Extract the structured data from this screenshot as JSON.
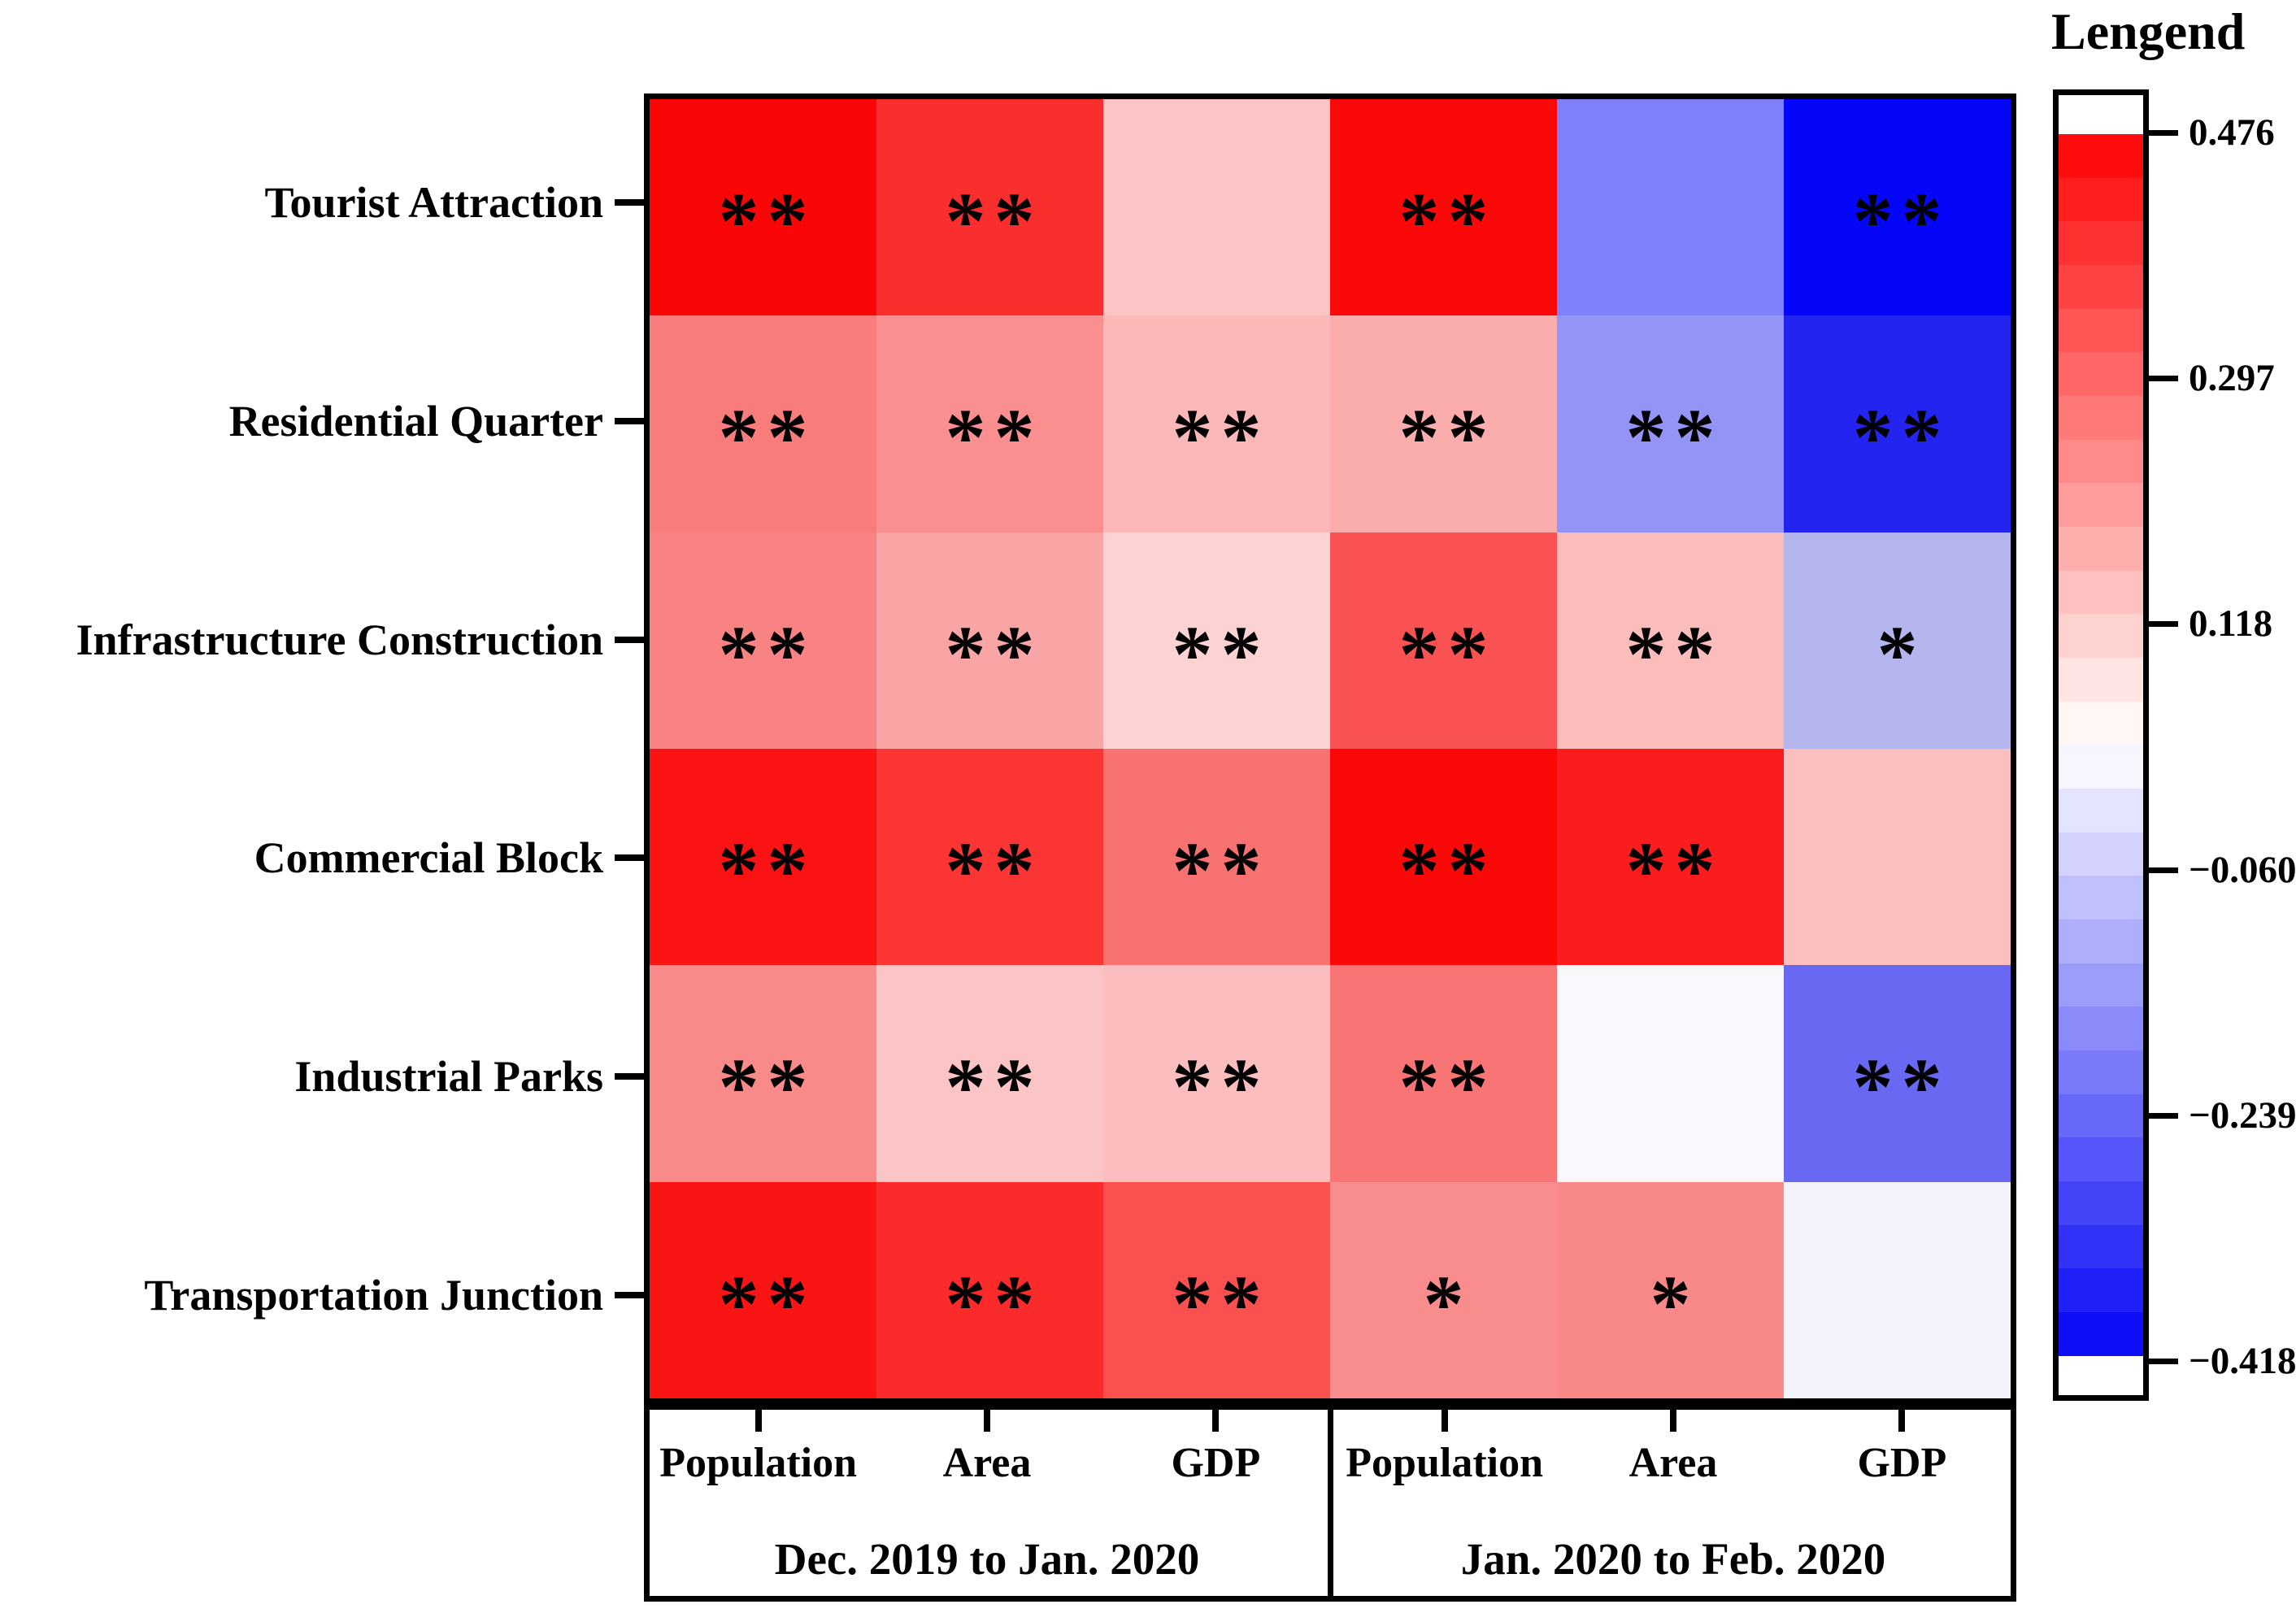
{
  "legend": {
    "title": "Lengend",
    "tick_labels": [
      "0.476",
      "0.297",
      "0.118",
      "−0.060",
      "−0.239",
      "−0.418"
    ],
    "colorbar": {
      "red_end": "#ff0404",
      "white_mid": "#ffffff",
      "blue_end": "#0404f6",
      "end_cap_color": "#ffffff",
      "band_count": 28,
      "border_color": "#000000"
    }
  },
  "chart_data": {
    "type": "heatmap",
    "title": "",
    "rows": [
      "Tourist Attraction",
      "Residential Quarter",
      "Infrastructure Construction",
      "Commercial Block",
      "Industrial Parks",
      "Transportation Junction"
    ],
    "column_groups": [
      {
        "label": "Dec. 2019 to Jan. 2020",
        "columns": [
          "Population",
          "Area",
          "GDP"
        ]
      },
      {
        "label": "Jan. 2020 to Feb. 2020",
        "columns": [
          "Population",
          "Area",
          "GDP"
        ]
      }
    ],
    "value_range": [
      -0.418,
      0.476
    ],
    "legend_tick_values": [
      0.476,
      0.297,
      0.118,
      -0.06,
      -0.239,
      -0.418
    ],
    "values": [
      [
        0.46,
        0.4,
        0.13,
        0.46,
        -0.19,
        -0.41
      ],
      [
        0.26,
        0.23,
        0.15,
        0.17,
        -0.16,
        -0.35
      ],
      [
        0.25,
        0.19,
        0.11,
        0.33,
        0.15,
        -0.1
      ],
      [
        0.44,
        0.39,
        0.28,
        0.46,
        0.42,
        0.14
      ],
      [
        0.23,
        0.13,
        0.14,
        0.27,
        0.01,
        -0.24
      ],
      [
        0.44,
        0.4,
        0.34,
        0.23,
        0.24,
        -0.01
      ]
    ],
    "significance": [
      [
        "**",
        "**",
        "",
        "**",
        "",
        "**"
      ],
      [
        "**",
        "**",
        "**",
        "**",
        "**",
        "**"
      ],
      [
        "**",
        "**",
        "**",
        "**",
        "**",
        "*"
      ],
      [
        "**",
        "**",
        "**",
        "**",
        "**",
        ""
      ],
      [
        "**",
        "**",
        "**",
        "**",
        "",
        "**"
      ],
      [
        "**",
        "**",
        "**",
        "*",
        "*",
        ""
      ]
    ],
    "cell_colors": [
      [
        "#fb0606",
        "#fb2e2e",
        "#fcc5c5",
        "#fc0808",
        "#8080fa",
        "#0505fa"
      ],
      [
        "#f97c7c",
        "#f98f8f",
        "#fcb8b8",
        "#fbadad",
        "#9494f6",
        "#2424f1"
      ],
      [
        "#f98383",
        "#faa5a5",
        "#fdd2d2",
        "#fa5252",
        "#fbbcbc",
        "#b5b5ee"
      ],
      [
        "#fb1212",
        "#fb3434",
        "#f97272",
        "#fb0909",
        "#fb1d1d",
        "#fcbfbf"
      ],
      [
        "#f98a8a",
        "#fcc5c5",
        "#fbbdbd",
        "#f97575",
        "#f8f8fd",
        "#6868f2"
      ],
      [
        "#fb1414",
        "#fb2b2b",
        "#fa5050",
        "#f98c8c",
        "#f98989",
        "#f3f3fc"
      ]
    ]
  }
}
